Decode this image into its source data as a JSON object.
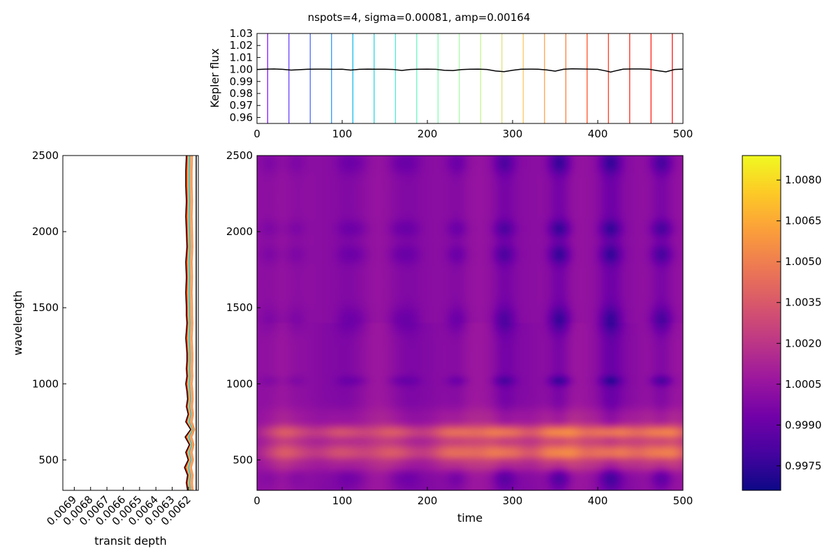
{
  "chart_data": [
    {
      "id": "kepler-lightcurve",
      "type": "line",
      "title": "nspots=4, sigma=0.00081, amp=0.00164",
      "xlabel": "",
      "ylabel": "Kepler flux",
      "xlim": [
        0,
        500
      ],
      "ylim": [
        0.955,
        1.03
      ],
      "x_ticks": [
        0,
        100,
        200,
        300,
        400,
        500
      ],
      "y_ticks": [
        0.96,
        0.97,
        0.98,
        0.99,
        1.0,
        1.01,
        1.02,
        1.03
      ],
      "y_tick_labels": [
        "0.96",
        "0.97",
        "0.98",
        "0.99",
        "1.00",
        "1.01",
        "1.02",
        "1.03"
      ],
      "series": [
        {
          "color": "#000000",
          "x": [
            0,
            10,
            20,
            30,
            40,
            50,
            60,
            70,
            80,
            90,
            100,
            110,
            120,
            130,
            140,
            150,
            160,
            170,
            180,
            190,
            200,
            210,
            220,
            230,
            240,
            250,
            260,
            270,
            280,
            290,
            300,
            310,
            320,
            330,
            340,
            350,
            360,
            370,
            380,
            390,
            400,
            410,
            415,
            420,
            430,
            440,
            450,
            460,
            470,
            480,
            490,
            500
          ],
          "y": [
            1.0,
            1.0003,
            1.0004,
            1.0001,
            0.9995,
            0.9998,
            1.0002,
            1.0003,
            1.0003,
            1.0001,
            1.0002,
            0.9995,
            1.0001,
            1.0003,
            1.0002,
            1.0002,
            1.0,
            0.9992,
            1.0,
            1.0002,
            1.0003,
            1.0001,
            0.9993,
            0.9991,
            0.9999,
            1.0002,
            1.0003,
            1.0,
            0.9988,
            0.9982,
            0.9993,
            1.0002,
            1.0003,
            1.0002,
            0.9996,
            0.9986,
            1.0002,
            1.0006,
            1.0004,
            1.0003,
            1.0001,
            0.9987,
            0.9978,
            0.9987,
            1.0003,
            1.0004,
            1.0004,
            1.0002,
            0.999,
            0.998,
            1.0,
            1.0003
          ]
        }
      ],
      "vlines": {
        "x": [
          12.5,
          37.5,
          62.5,
          87.5,
          112.5,
          137.5,
          162.5,
          187.5,
          212.5,
          237.5,
          262.5,
          287.5,
          312.5,
          337.5,
          362.5,
          387.5,
          412.5,
          437.5,
          462.5,
          487.5
        ],
        "colors": [
          "#8000ff",
          "#5f30fe",
          "#3f61fa",
          "#1e8df4",
          "#00b5eb",
          "#1fd1e0",
          "#40e6d1",
          "#60f6c1",
          "#7ffeb0",
          "#a0fe9d",
          "#c0f488",
          "#e0e072",
          "#ffc25a",
          "#ff9c41",
          "#ff7227",
          "#ff4410",
          "#ff2b0c",
          "#ff1a07",
          "#ff0d04",
          "#ff0000"
        ]
      },
      "grid": false
    },
    {
      "id": "transit-depth-spectrum",
      "type": "line",
      "xlabel": "transit depth",
      "ylabel": "wavelength",
      "x_inverted": true,
      "xlim": [
        0.00697,
        0.00614
      ],
      "ylim": [
        300,
        2500
      ],
      "x_ticks": [
        0.0069,
        0.0068,
        0.0067,
        0.0066,
        0.0065,
        0.0064,
        0.0063,
        0.0062
      ],
      "x_tick_labels": [
        "0.0069",
        "0.0068",
        "0.0067",
        "0.0066",
        "0.0065",
        "0.0064",
        "0.0063",
        "0.0062"
      ],
      "y_ticks": [
        500,
        1000,
        1500,
        2000,
        2500
      ],
      "wavelength": [
        300,
        350,
        400,
        450,
        500,
        550,
        600,
        650,
        700,
        750,
        800,
        850,
        900,
        950,
        1000,
        1050,
        1100,
        1150,
        1200,
        1250,
        1300,
        1350,
        1400,
        1450,
        1500,
        1600,
        1700,
        1800,
        1900,
        2000,
        2100,
        2200,
        2300,
        2400,
        2500
      ],
      "base_depth": [
        0.006193,
        0.006195,
        0.006193,
        0.006198,
        0.006192,
        0.006196,
        0.00619,
        0.006197,
        0.006188,
        0.006196,
        0.006192,
        0.006195,
        0.006193,
        0.006194,
        0.006196,
        0.006194,
        0.006195,
        0.006194,
        0.006194,
        0.006195,
        0.006196,
        0.006195,
        0.006194,
        0.006195,
        0.006195,
        0.006196,
        0.006195,
        0.006196,
        0.006194,
        0.006195,
        0.006196,
        0.006195,
        0.006196,
        0.006196,
        0.006195
      ],
      "series_offsets": [
        -2e-05,
        -1.4e-05,
        -8e-06,
        -3e-06,
        0.0,
        2e-06,
        4e-06,
        6e-06,
        8e-06,
        1e-05,
        1.1e-05,
        1.2e-05,
        1.3e-05,
        1.4e-05,
        1.5e-05,
        1.6e-05
      ],
      "series_colors": [
        "#ff8c3a",
        "#f59a5a",
        "#e8a060",
        "#40c0d0",
        "#2aa8c8",
        "#7fd8b0",
        "#a0e090",
        "#ffc25a",
        "#ff9c41",
        "#ff7227",
        "#ff5a1a",
        "#ff4410",
        "#ff2b0c",
        "#ff1a07",
        "#ff0d04",
        "#000000"
      ],
      "reference_line": 0.006153,
      "grid": false
    },
    {
      "id": "flux-heatmap",
      "type": "heatmap",
      "xlabel": "time",
      "ylabel": "",
      "xlim": [
        0,
        500
      ],
      "ylim": [
        300,
        2500
      ],
      "x_ticks": [
        0,
        100,
        200,
        300,
        400,
        500
      ],
      "y_ticks": [
        500,
        1000,
        1500,
        2000,
        2500
      ],
      "colormap": "plasma",
      "colormap_stops": [
        "#0d0887",
        "#46039f",
        "#7201a8",
        "#9c179e",
        "#bd3786",
        "#d8576b",
        "#ed7953",
        "#fb9f3a",
        "#fdca26",
        "#f0f921"
      ],
      "vmin": 0.9966,
      "vmax": 1.0089,
      "colorbar_ticks": [
        0.9975,
        0.999,
        1.0005,
        1.002,
        1.0035,
        1.005,
        1.0065,
        1.008
      ],
      "colorbar_tick_labels": [
        "0.9975",
        "0.9990",
        "1.0005",
        "1.0020",
        "1.0035",
        "1.0050",
        "1.0065",
        "1.0080"
      ],
      "spot_dip_times": [
        15,
        45,
        105,
        120,
        165,
        180,
        235,
        290,
        355,
        415,
        475
      ],
      "spot_dip_strength": [
        0.25,
        0.25,
        0.3,
        0.25,
        0.3,
        0.3,
        0.45,
        0.7,
        1.0,
        0.9,
        0.85
      ],
      "bright_band_times": [
        35,
        100,
        165,
        230,
        290,
        355,
        418,
        478
      ],
      "bright_band_strength": [
        0.55,
        0.6,
        0.6,
        0.75,
        0.9,
        1.0,
        0.95,
        0.9
      ],
      "grid": false
    }
  ]
}
